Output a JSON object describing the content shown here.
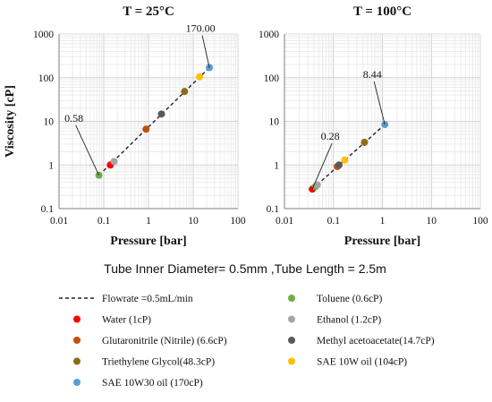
{
  "caption": "Tube Inner Diameter= 0.5mm ,Tube Length = 2.5m",
  "legend": {
    "columns": [
      [
        {
          "kind": "line",
          "label": "Flowrate =0.5mL/min",
          "color": "#222222"
        },
        {
          "kind": "dot",
          "label": "Water (1cP)",
          "color": "#ff0000"
        },
        {
          "kind": "dot",
          "label": "Glutaronitrile (Nitrile) (6.6cP)",
          "color": "#c0500c"
        },
        {
          "kind": "dot",
          "label": "Triethylene Glycol(48.3cP)",
          "color": "#8b6b14"
        },
        {
          "kind": "dot",
          "label": "SAE 10W30 oil (170cP)",
          "color": "#5b9bd5"
        }
      ],
      [
        {
          "kind": "dot",
          "label": "Toluene (0.6cP)",
          "color": "#70ad47"
        },
        {
          "kind": "dot",
          "label": "Ethanol (1.2cP)",
          "color": "#a5a5a5"
        },
        {
          "kind": "dot",
          "label": "Methyl acetoacetate(14.7cP)",
          "color": "#595959"
        },
        {
          "kind": "dot",
          "label": "SAE 10W oil (104cP)",
          "color": "#ffc000"
        }
      ]
    ]
  },
  "chart_data": [
    {
      "type": "scatter",
      "title": "T = 25°C",
      "xlabel": "Pressure [bar]",
      "ylabel": "Viscosity [cP]",
      "xscale": "log",
      "yscale": "log",
      "xlim": [
        0.01,
        100
      ],
      "ylim": [
        0.1,
        1000
      ],
      "x_ticks": [
        "0.01",
        "0.1",
        "1",
        "10",
        "100"
      ],
      "y_ticks": [
        "0.1",
        "1",
        "10",
        "100",
        "1000"
      ],
      "grid": true,
      "series": [
        {
          "name": "Toluene (0.6cP)",
          "color": "#70ad47",
          "points": [
            [
              0.078,
              0.58
            ]
          ]
        },
        {
          "name": "Water (1cP)",
          "color": "#ff0000",
          "points": [
            [
              0.14,
              1.0
            ]
          ]
        },
        {
          "name": "Ethanol (1.2cP)",
          "color": "#a5a5a5",
          "points": [
            [
              0.17,
              1.2
            ]
          ]
        },
        {
          "name": "Glutaronitrile (Nitrile) (6.6cP)",
          "color": "#c0500c",
          "points": [
            [
              0.88,
              6.6
            ]
          ]
        },
        {
          "name": "Methyl acetoacetate(14.7cP)",
          "color": "#595959",
          "points": [
            [
              1.95,
              14.7
            ]
          ]
        },
        {
          "name": "Triethylene Glycol(48.3cP)",
          "color": "#8b6b14",
          "points": [
            [
              6.4,
              48.3
            ]
          ]
        },
        {
          "name": "SAE 10W oil (104cP)",
          "color": "#ffc000",
          "points": [
            [
              13.8,
              104
            ]
          ]
        },
        {
          "name": "SAE 10W30 oil (170cP)",
          "color": "#5b9bd5",
          "points": [
            [
              23,
              170
            ]
          ]
        }
      ],
      "trendline": {
        "name": "Flowrate =0.5mL/min",
        "points": [
          [
            0.078,
            0.58
          ],
          [
            23,
            170
          ]
        ]
      },
      "annotations": [
        {
          "text": "0.58",
          "point": [
            0.078,
            0.58
          ]
        },
        {
          "text": "170.00",
          "point": [
            23,
            170
          ]
        }
      ]
    },
    {
      "type": "scatter",
      "title": "T = 100°C",
      "xlabel": "Pressure [bar]",
      "ylabel": "",
      "xscale": "log",
      "yscale": "log",
      "xlim": [
        0.01,
        100
      ],
      "ylim": [
        0.1,
        1000
      ],
      "x_ticks": [
        "0.01",
        "0.1",
        "1",
        "10",
        "100"
      ],
      "y_ticks": [
        "0.1",
        "1",
        "10",
        "100",
        "1000"
      ],
      "grid": true,
      "series": [
        {
          "name": "Water (1cP)",
          "color": "#ff0000",
          "points": [
            [
              0.037,
              0.28
            ]
          ]
        },
        {
          "name": "Toluene (0.6cP)",
          "color": "#70ad47",
          "points": [
            [
              0.043,
              0.32
            ]
          ]
        },
        {
          "name": "Ethanol (1.2cP)",
          "color": "#a5a5a5",
          "points": [
            [
              0.047,
              0.35
            ]
          ]
        },
        {
          "name": "Glutaronitrile (Nitrile) (6.6cP)",
          "color": "#c0500c",
          "points": [
            [
              0.12,
              0.92
            ]
          ]
        },
        {
          "name": "Methyl acetoacetate(14.7cP)",
          "color": "#595959",
          "points": [
            [
              0.13,
              1.0
            ]
          ]
        },
        {
          "name": "SAE 10W oil (104cP)",
          "color": "#ffc000",
          "points": [
            [
              0.17,
              1.3
            ]
          ]
        },
        {
          "name": "Triethylene Glycol(48.3cP)",
          "color": "#8b6b14",
          "points": [
            [
              0.43,
              3.3
            ]
          ]
        },
        {
          "name": "SAE 10W30 oil (170cP)",
          "color": "#5b9bd5",
          "points": [
            [
              1.12,
              8.44
            ]
          ]
        }
      ],
      "trendline": {
        "name": "Flowrate =0.5mL/min",
        "points": [
          [
            0.037,
            0.28
          ],
          [
            1.12,
            8.44
          ]
        ]
      },
      "annotations": [
        {
          "text": "0.28",
          "point": [
            0.037,
            0.28
          ]
        },
        {
          "text": "8.44",
          "point": [
            1.12,
            8.44
          ]
        }
      ]
    }
  ]
}
